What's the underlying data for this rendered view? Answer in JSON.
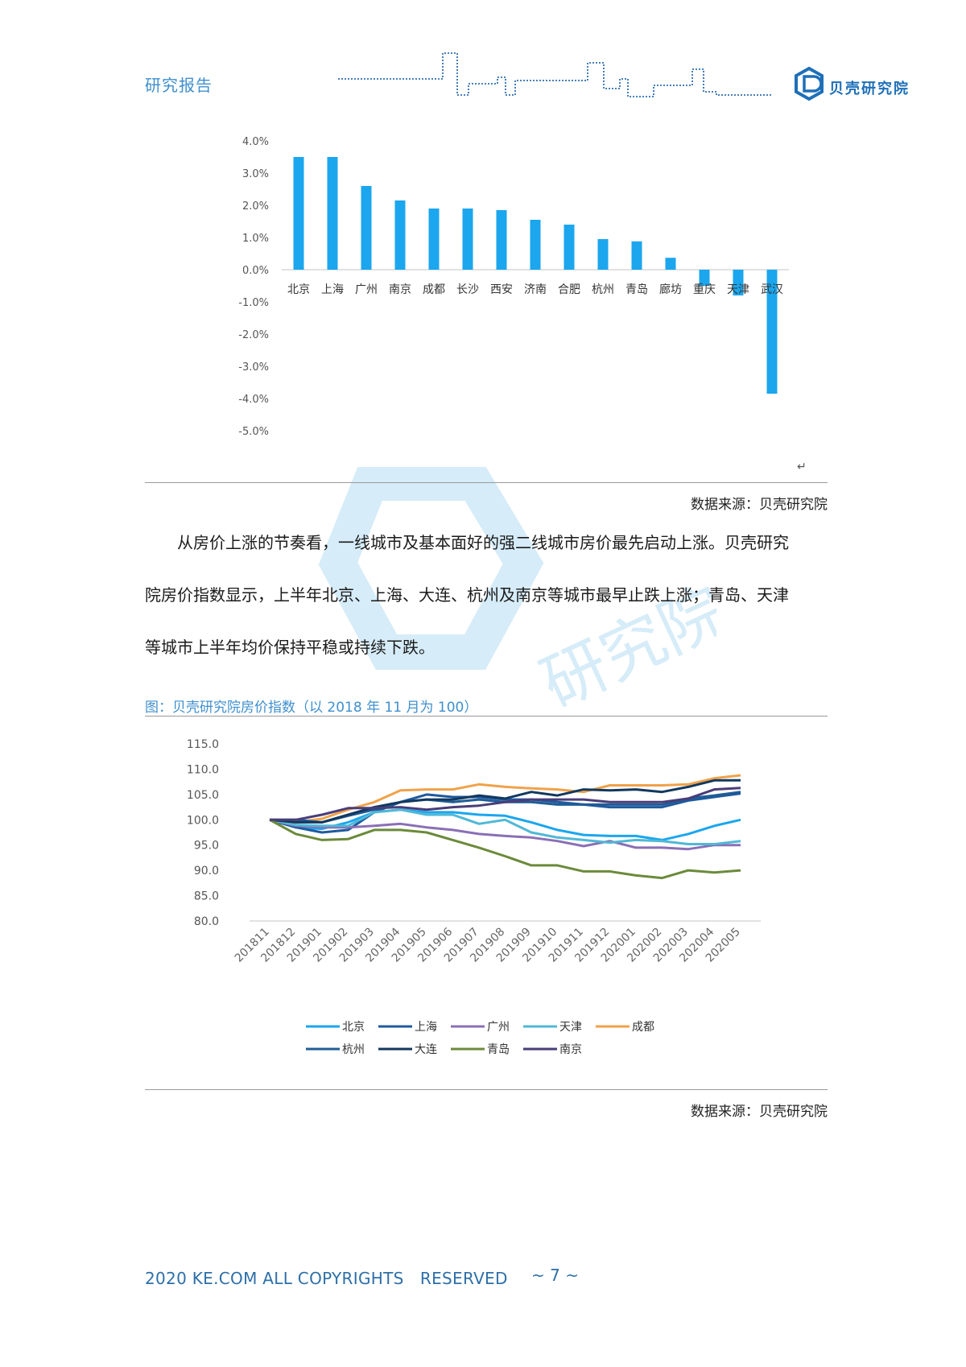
{
  "header": {
    "title": "研究报告",
    "logo_text": "贝壳研究院"
  },
  "watermark": {
    "text": "研究院"
  },
  "bar_chart": {
    "source": "数据来源：贝壳研究院",
    "return_mark": "↵"
  },
  "paragraph": {
    "line1": "从房价上涨的节奏看，一线城市及基本面好的强二线城市房价最先启动上涨。贝壳研究",
    "line2": "院房价指数显示，上半年北京、上海、大连、杭州及南京等城市最早止跌上涨；青岛、天津",
    "line3": "等城市上半年均价保持平稳或持续下跌。"
  },
  "line_chart_caption": "图：贝壳研究院房价指数（以 2018 年 11 月为 100）",
  "line_chart_source": "数据来源：贝壳研究院",
  "footer": {
    "copyright": "2020 KE.COM ALL COPYRIGHTS　RESERVED",
    "page": "~ 7 ~"
  },
  "colors": {
    "bar": "#1ba6ee",
    "北京": "#1ba6ee",
    "上海": "#1e5a9e",
    "广州": "#8a6fb5",
    "天津": "#4fb8d6",
    "成都": "#f0a24a",
    "杭州": "#1f5c96",
    "大连": "#12385e",
    "青岛": "#6b8a3a",
    "南京": "#4a3d78"
  },
  "chart_data": [
    {
      "type": "bar",
      "categories": [
        "北京",
        "上海",
        "广州",
        "南京",
        "成都",
        "长沙",
        "西安",
        "济南",
        "合肥",
        "杭州",
        "青岛",
        "廊坊",
        "重庆",
        "天津",
        "武汉"
      ],
      "values": [
        3.5,
        3.5,
        2.6,
        2.15,
        1.9,
        1.9,
        1.85,
        1.55,
        1.4,
        0.95,
        0.88,
        0.37,
        -0.5,
        -0.8,
        -3.85
      ],
      "yticks": [
        "4.0%",
        "3.0%",
        "2.0%",
        "1.0%",
        "0.0%",
        "-1.0%",
        "-2.0%",
        "-3.0%",
        "-4.0%",
        "-5.0%"
      ],
      "ylim": [
        -5,
        4
      ],
      "grid": false
    },
    {
      "type": "line",
      "x": [
        "201811",
        "201812",
        "201901",
        "201902",
        "201903",
        "201904",
        "201905",
        "201906",
        "201907",
        "201908",
        "201909",
        "201910",
        "201911",
        "201912",
        "202001",
        "202002",
        "202003",
        "202004",
        "202005"
      ],
      "yticks": [
        "115.0",
        "110.0",
        "105.0",
        "100.0",
        "95.0",
        "90.0",
        "85.0",
        "80.0"
      ],
      "ylim": [
        80,
        115
      ],
      "legend_position": "bottom",
      "grid": false,
      "series": [
        {
          "name": "北京",
          "values": [
            100,
            98.5,
            98.2,
            99.5,
            101.5,
            102,
            101.5,
            101.5,
            101,
            100.8,
            99.5,
            98,
            97,
            96.8,
            96.8,
            96,
            97.2,
            98.8,
            100
          ]
        },
        {
          "name": "上海",
          "values": [
            100,
            98.5,
            97.5,
            98,
            101.5,
            103.5,
            105,
            104.5,
            104.5,
            104,
            104,
            103.5,
            103,
            102.5,
            102.5,
            102.5,
            103.8,
            104.5,
            105.2
          ]
        },
        {
          "name": "广州",
          "values": [
            100,
            98.8,
            98.5,
            98.5,
            98.8,
            99.2,
            98.5,
            98,
            97.2,
            96.8,
            96.5,
            95.8,
            94.8,
            95.8,
            94.5,
            94.5,
            94.2,
            95,
            95
          ]
        },
        {
          "name": "天津",
          "values": [
            100,
            99,
            98.8,
            98.8,
            101.5,
            102,
            101,
            101,
            99.2,
            100,
            97.5,
            96.5,
            96,
            95.5,
            96,
            95.8,
            95.2,
            95.2,
            95.8
          ]
        },
        {
          "name": "成都",
          "values": [
            100,
            99.5,
            100.2,
            102,
            103.5,
            105.8,
            106,
            106,
            107,
            106.5,
            106.2,
            106,
            105.5,
            106.8,
            106.8,
            106.8,
            107,
            108.2,
            108.8
          ]
        },
        {
          "name": "杭州",
          "values": [
            100,
            100,
            99.5,
            100.8,
            102,
            103.5,
            104,
            103.5,
            104,
            103.5,
            103.5,
            103,
            103,
            103,
            103,
            103,
            104.2,
            104.8,
            105.5
          ]
        },
        {
          "name": "大连",
          "values": [
            100,
            99.5,
            99.5,
            101,
            102.5,
            103.5,
            104,
            104,
            104.8,
            104.2,
            105.5,
            104.8,
            106,
            105.8,
            106,
            105.5,
            106.5,
            107.8,
            107.8
          ]
        },
        {
          "name": "青岛",
          "values": [
            100,
            97.2,
            96,
            96.2,
            98,
            98,
            97.5,
            96,
            94.5,
            92.8,
            91,
            91,
            89.8,
            89.8,
            89,
            88.5,
            90,
            89.6,
            90
          ]
        },
        {
          "name": "南京",
          "values": [
            100,
            100,
            101,
            102.3,
            102.3,
            102.5,
            102,
            102.5,
            102.8,
            103.5,
            104,
            104,
            104,
            103.5,
            103.5,
            103.5,
            104.2,
            106,
            106.3
          ]
        }
      ]
    }
  ]
}
